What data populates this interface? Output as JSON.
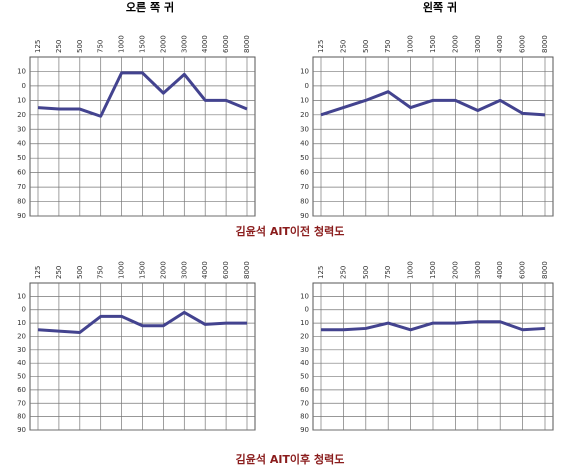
{
  "chart_data": [
    {
      "type": "line",
      "title": "오른 쪽 귀",
      "categories": [
        "125",
        "250",
        "500",
        "750",
        "1000",
        "1500",
        "2000",
        "3000",
        "4000",
        "6000",
        "8000"
      ],
      "values": [
        15,
        16,
        16,
        21,
        -9,
        -9,
        5,
        -8,
        10,
        10,
        16
      ],
      "color": "#43438f",
      "ylim": [
        -20,
        90
      ],
      "y_inverted": true,
      "yticks": [
        {
          "value": -10,
          "label": "10"
        },
        0,
        10,
        20,
        30,
        40,
        50,
        60,
        70,
        80,
        90
      ],
      "grid": true
    },
    {
      "type": "line",
      "title": "왼쪽 귀",
      "categories": [
        "125",
        "250",
        "500",
        "750",
        "1000",
        "1500",
        "2000",
        "3000",
        "4000",
        "6000",
        "8000"
      ],
      "values": [
        20,
        15,
        10,
        4,
        15,
        10,
        10,
        17,
        10,
        19,
        20
      ],
      "color": "#43438f",
      "ylim": [
        -20,
        90
      ],
      "y_inverted": true,
      "yticks": [
        {
          "value": -10,
          "label": "10"
        },
        0,
        10,
        20,
        30,
        40,
        50,
        60,
        70,
        80,
        90
      ],
      "grid": true
    },
    {
      "type": "line",
      "categories": [
        "125",
        "250",
        "500",
        "750",
        "1000",
        "1500",
        "2000",
        "3000",
        "4000",
        "6000",
        "8000"
      ],
      "values": [
        15,
        16,
        17,
        5,
        5,
        12,
        12,
        2,
        11,
        10,
        10
      ],
      "color": "#43438f",
      "ylim": [
        -20,
        90
      ],
      "y_inverted": true,
      "yticks": [
        {
          "value": -10,
          "label": "10"
        },
        0,
        10,
        20,
        30,
        40,
        50,
        60,
        70,
        80,
        90
      ],
      "grid": true
    },
    {
      "type": "line",
      "categories": [
        "125",
        "250",
        "500",
        "750",
        "1000",
        "1500",
        "2000",
        "3000",
        "4000",
        "6000",
        "8000"
      ],
      "values": [
        15,
        15,
        14,
        10,
        15,
        10,
        10,
        9,
        9,
        15,
        14
      ],
      "color": "#43438f",
      "ylim": [
        -20,
        90
      ],
      "y_inverted": true,
      "yticks": [
        {
          "value": -10,
          "label": "10"
        },
        0,
        10,
        20,
        30,
        40,
        50,
        60,
        70,
        80,
        90
      ],
      "grid": true
    }
  ],
  "captions": [
    "김윤석 AIT이전 청력도",
    "김윤석 AIT이후 청력도"
  ]
}
